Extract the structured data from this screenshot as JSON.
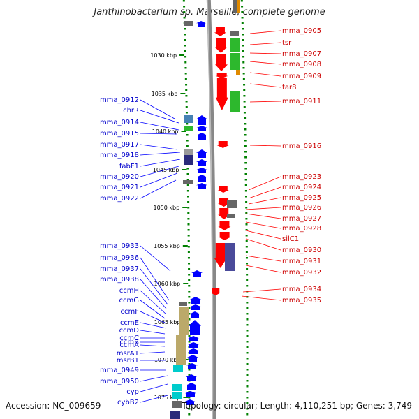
{
  "title": "Janthinobacterium sp. Marseille, complete genome",
  "footer": {
    "accession": "Accession: NC_009659",
    "stats": "Topology: circular; Length: 4,110,251 bp; Genes: 3,749"
  },
  "colors": {
    "forward_gene": "#0000ff",
    "reverse_gene": "#ff0000",
    "backbone": "#888888",
    "tick": "#008000",
    "label_left": "#0000cc",
    "label_right": "#cc0000"
  },
  "ticks": [
    "1030 kbp",
    "1035 kbp",
    "1040 kbp",
    "1045 kbp",
    "1050 kbp",
    "1055 kbp",
    "1060 kbp",
    "1065 kbp",
    "1070 kbp",
    "1075 kbp"
  ],
  "left_labels": [
    "mma_0912",
    "chrR",
    "mma_0914",
    "mma_0915",
    "mma_0917",
    "mma_0918",
    "fabF1",
    "mma_0920",
    "mma_0921",
    "mma_0922",
    "mma_0933",
    "mma_0936",
    "mma_0937",
    "mma_0938",
    "ccmH",
    "ccmG",
    "ccmF",
    "ccmE",
    "ccmD",
    "ccmC",
    "ccmB",
    "ccmA",
    "msrA1",
    "msrB1",
    "mma_0949",
    "mma_0950",
    "cyp",
    "cybB2"
  ],
  "right_labels": [
    "mma_0905",
    "tsr",
    "mma_0907",
    "mma_0908",
    "mma_0909",
    "tar8",
    "mma_0911",
    "mma_0916",
    "mma_0923",
    "mma_0924",
    "mma_0925",
    "mma_0926",
    "mma_0927",
    "mma_0928",
    "silC1",
    "mma_0930",
    "mma_0931",
    "mma_0932",
    "mma_0934",
    "mma_0935"
  ]
}
